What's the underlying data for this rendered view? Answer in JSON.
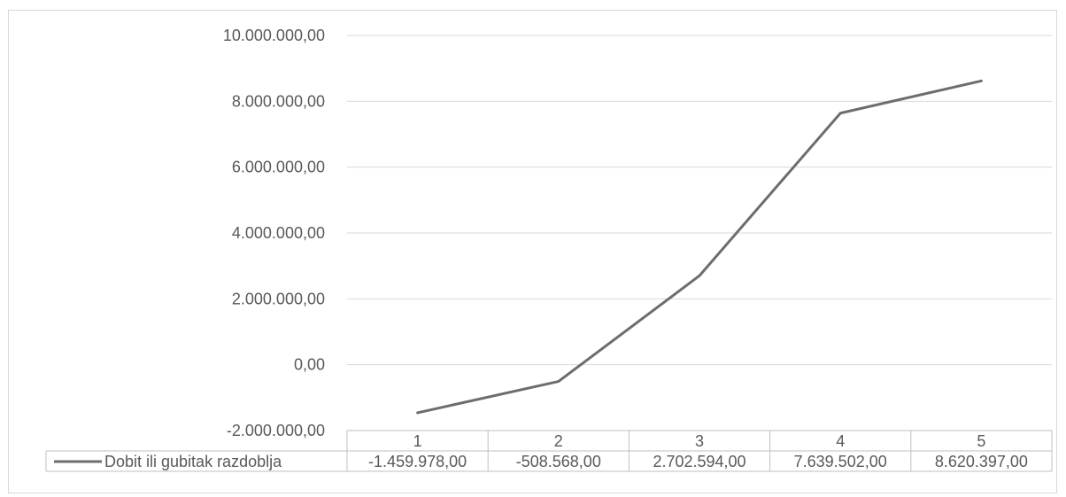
{
  "chart_data": {
    "type": "line",
    "title": "",
    "xlabel": "",
    "ylabel": "",
    "categories": [
      "1",
      "2",
      "3",
      "4",
      "5"
    ],
    "series": [
      {
        "name": "Dobit ili gubitak razdoblja",
        "values": [
          -1459978,
          -508568,
          2702594,
          7639502,
          8620397
        ],
        "display_values": [
          "-1.459.978,00",
          "-508.568,00",
          "2.702.594,00",
          "7.639.502,00",
          "8.620.397,00"
        ],
        "color": "#6d6d6d"
      }
    ],
    "ylim": [
      -2000000,
      10000000
    ],
    "y_ticks": [
      10000000,
      8000000,
      6000000,
      4000000,
      2000000,
      0,
      -2000000
    ],
    "y_tick_labels": [
      "10.000.000,00",
      "8.000.000,00",
      "6.000.000,00",
      "4.000.000,00",
      "2.000.000,00",
      "0,00",
      "-2.000.000,00"
    ],
    "grid": true,
    "legend": "data-table-left",
    "gridline_color": "#d9d9d9",
    "text_color": "#595959"
  }
}
